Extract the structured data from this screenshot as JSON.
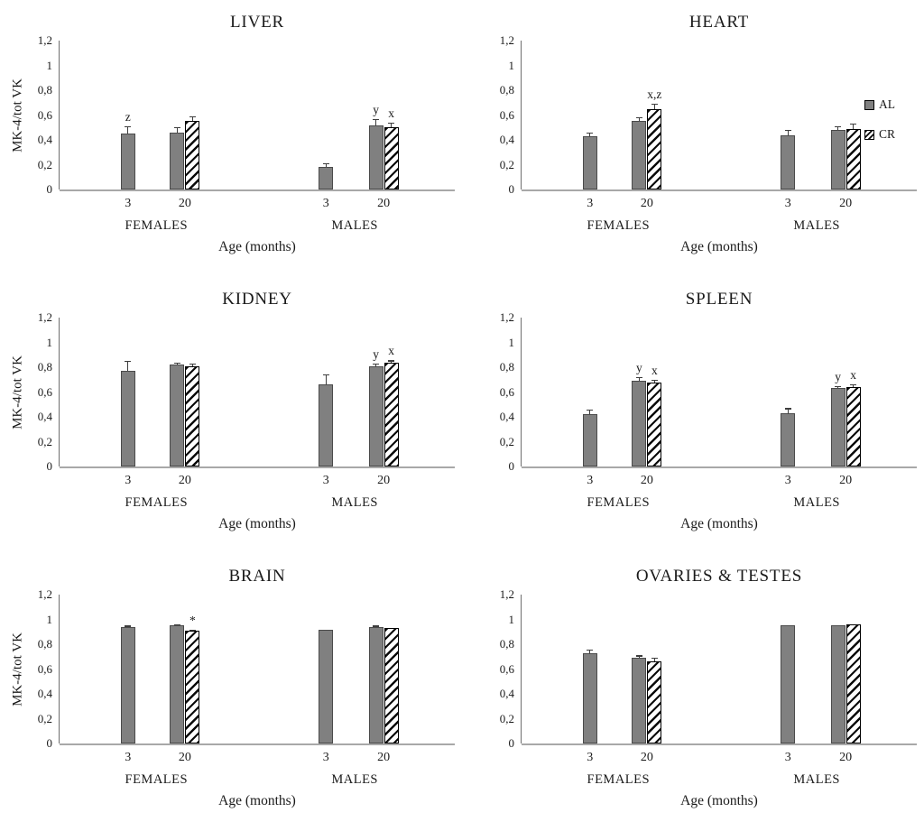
{
  "figure": {
    "background": "#ffffff"
  },
  "colors": {
    "al_fill": "#808080",
    "al_border": "#4a4a4a",
    "cr_fill": "#ffffff",
    "cr_hatch": "#0a0a0a",
    "axis": "#6e6e6e",
    "baseline": "#a8a8a8",
    "text": "#1a1a1a"
  },
  "legend": {
    "items": [
      {
        "label": "AL",
        "swatch": "al"
      },
      {
        "label": "CR",
        "swatch": "cr"
      }
    ]
  },
  "chart_data": [
    {
      "type": "bar",
      "title": "LIVER",
      "ylabel": "MK-4/tot VK",
      "xlabel": "Age (months)",
      "ylim": [
        0,
        1.2
      ],
      "yticks": [
        [
          0,
          "0"
        ],
        [
          0.2,
          "0,2"
        ],
        [
          0.4,
          "0,4"
        ],
        [
          0.6,
          "0,6"
        ],
        [
          0.8,
          "0,8"
        ],
        [
          1,
          "1"
        ],
        [
          1.2,
          "1,2"
        ]
      ],
      "show_legend": false,
      "groups": [
        {
          "label": "FEMALES",
          "categories": [
            {
              "label": "3",
              "bars": [
                {
                  "series": "AL",
                  "value": 0.45,
                  "error": 0.06,
                  "note": "z"
                }
              ]
            },
            {
              "label": "20",
              "bars": [
                {
                  "series": "AL",
                  "value": 0.46,
                  "error": 0.04,
                  "note": ""
                },
                {
                  "series": "CR",
                  "value": 0.55,
                  "error": 0.04,
                  "note": ""
                }
              ]
            }
          ]
        },
        {
          "label": "MALES",
          "categories": [
            {
              "label": "3",
              "bars": [
                {
                  "series": "AL",
                  "value": 0.18,
                  "error": 0.03,
                  "note": ""
                }
              ]
            },
            {
              "label": "20",
              "bars": [
                {
                  "series": "AL",
                  "value": 0.52,
                  "error": 0.05,
                  "note": "y"
                },
                {
                  "series": "CR",
                  "value": 0.5,
                  "error": 0.04,
                  "note": "x"
                }
              ]
            }
          ]
        }
      ]
    },
    {
      "type": "bar",
      "title": "HEART",
      "ylabel": null,
      "xlabel": "Age (months)",
      "ylim": [
        0,
        1.2
      ],
      "yticks": [
        [
          0,
          "0"
        ],
        [
          0.2,
          "0,2"
        ],
        [
          0.4,
          "0,4"
        ],
        [
          0.6,
          "0,6"
        ],
        [
          0.8,
          "0,8"
        ],
        [
          1,
          "1"
        ],
        [
          1.2,
          "1,2"
        ]
      ],
      "show_legend": true,
      "groups": [
        {
          "label": "FEMALES",
          "categories": [
            {
              "label": "3",
              "bars": [
                {
                  "series": "AL",
                  "value": 0.43,
                  "error": 0.03,
                  "note": ""
                }
              ]
            },
            {
              "label": "20",
              "bars": [
                {
                  "series": "AL",
                  "value": 0.55,
                  "error": 0.03,
                  "note": ""
                },
                {
                  "series": "CR",
                  "value": 0.65,
                  "error": 0.04,
                  "note": "x,z"
                }
              ]
            }
          ]
        },
        {
          "label": "MALES",
          "categories": [
            {
              "label": "3",
              "bars": [
                {
                  "series": "AL",
                  "value": 0.44,
                  "error": 0.04,
                  "note": ""
                }
              ]
            },
            {
              "label": "20",
              "bars": [
                {
                  "series": "AL",
                  "value": 0.48,
                  "error": 0.03,
                  "note": ""
                },
                {
                  "series": "CR",
                  "value": 0.49,
                  "error": 0.04,
                  "note": ""
                }
              ]
            }
          ]
        }
      ]
    },
    {
      "type": "bar",
      "title": "KIDNEY",
      "ylabel": "MK-4/tot VK",
      "xlabel": "Age (months)",
      "ylim": [
        0,
        1.2
      ],
      "yticks": [
        [
          0,
          "0"
        ],
        [
          0.2,
          "0,2"
        ],
        [
          0.4,
          "0,4"
        ],
        [
          0.6,
          "0,6"
        ],
        [
          0.8,
          "0,8"
        ],
        [
          1,
          "1"
        ],
        [
          1.2,
          "1,2"
        ]
      ],
      "show_legend": false,
      "groups": [
        {
          "label": "FEMALES",
          "categories": [
            {
              "label": "3",
              "bars": [
                {
                  "series": "AL",
                  "value": 0.77,
                  "error": 0.08,
                  "note": ""
                }
              ]
            },
            {
              "label": "20",
              "bars": [
                {
                  "series": "AL",
                  "value": 0.82,
                  "error": 0.02,
                  "note": ""
                },
                {
                  "series": "CR",
                  "value": 0.81,
                  "error": 0.02,
                  "note": ""
                }
              ]
            }
          ]
        },
        {
          "label": "MALES",
          "categories": [
            {
              "label": "3",
              "bars": [
                {
                  "series": "AL",
                  "value": 0.66,
                  "error": 0.08,
                  "note": ""
                }
              ]
            },
            {
              "label": "20",
              "bars": [
                {
                  "series": "AL",
                  "value": 0.81,
                  "error": 0.02,
                  "note": "y"
                },
                {
                  "series": "CR",
                  "value": 0.84,
                  "error": 0.015,
                  "note": "x"
                }
              ]
            }
          ]
        }
      ]
    },
    {
      "type": "bar",
      "title": "SPLEEN",
      "ylabel": null,
      "xlabel": "Age (months)",
      "ylim": [
        0,
        1.2
      ],
      "yticks": [
        [
          0,
          "0"
        ],
        [
          0.2,
          "0,2"
        ],
        [
          0.4,
          "0,4"
        ],
        [
          0.6,
          "0,6"
        ],
        [
          0.8,
          "0,8"
        ],
        [
          1,
          "1"
        ],
        [
          1.2,
          "1,2"
        ]
      ],
      "show_legend": false,
      "groups": [
        {
          "label": "FEMALES",
          "categories": [
            {
              "label": "3",
              "bars": [
                {
                  "series": "AL",
                  "value": 0.42,
                  "error": 0.04,
                  "note": ""
                }
              ]
            },
            {
              "label": "20",
              "bars": [
                {
                  "series": "AL",
                  "value": 0.69,
                  "error": 0.03,
                  "note": "y"
                },
                {
                  "series": "CR",
                  "value": 0.68,
                  "error": 0.02,
                  "note": "x"
                }
              ]
            }
          ]
        },
        {
          "label": "MALES",
          "categories": [
            {
              "label": "3",
              "bars": [
                {
                  "series": "AL",
                  "value": 0.43,
                  "error": 0.04,
                  "note": ""
                }
              ]
            },
            {
              "label": "20",
              "bars": [
                {
                  "series": "AL",
                  "value": 0.63,
                  "error": 0.02,
                  "note": "y"
                },
                {
                  "series": "CR",
                  "value": 0.64,
                  "error": 0.02,
                  "note": "x"
                }
              ]
            }
          ]
        }
      ]
    },
    {
      "type": "bar",
      "title": "BRAIN",
      "ylabel": "MK-4/tot VK",
      "xlabel": "Age (months)",
      "ylim": [
        0,
        1.2
      ],
      "yticks": [
        [
          0,
          "0"
        ],
        [
          0.2,
          "0,2"
        ],
        [
          0.4,
          "0,4"
        ],
        [
          0.6,
          "0,6"
        ],
        [
          0.8,
          "0,8"
        ],
        [
          1,
          "1"
        ],
        [
          1.2,
          "1,2"
        ]
      ],
      "show_legend": false,
      "groups": [
        {
          "label": "FEMALES",
          "categories": [
            {
              "label": "3",
              "bars": [
                {
                  "series": "AL",
                  "value": 0.94,
                  "error": 0.01,
                  "note": ""
                }
              ]
            },
            {
              "label": "20",
              "bars": [
                {
                  "series": "AL",
                  "value": 0.95,
                  "error": 0.01,
                  "note": ""
                },
                {
                  "series": "CR",
                  "value": 0.91,
                  "error": 0.01,
                  "note": "*"
                }
              ]
            }
          ]
        },
        {
          "label": "MALES",
          "categories": [
            {
              "label": "3",
              "bars": [
                {
                  "series": "AL",
                  "value": 0.92,
                  "error": 0.005,
                  "note": ""
                }
              ]
            },
            {
              "label": "20",
              "bars": [
                {
                  "series": "AL",
                  "value": 0.94,
                  "error": 0.01,
                  "note": ""
                },
                {
                  "series": "CR",
                  "value": 0.93,
                  "error": 0.005,
                  "note": ""
                }
              ]
            }
          ]
        }
      ]
    },
    {
      "type": "bar",
      "title": "OVARIES & TESTES",
      "ylabel": null,
      "xlabel": "Age (months)",
      "ylim": [
        0,
        1.2
      ],
      "yticks": [
        [
          0,
          "0"
        ],
        [
          0.2,
          "0,2"
        ],
        [
          0.4,
          "0,4"
        ],
        [
          0.6,
          "0,6"
        ],
        [
          0.8,
          "0,8"
        ],
        [
          1,
          "1"
        ],
        [
          1.2,
          "1,2"
        ]
      ],
      "show_legend": false,
      "groups": [
        {
          "label": "FEMALES",
          "categories": [
            {
              "label": "3",
              "bars": [
                {
                  "series": "AL",
                  "value": 0.73,
                  "error": 0.03,
                  "note": ""
                }
              ]
            },
            {
              "label": "20",
              "bars": [
                {
                  "series": "AL",
                  "value": 0.69,
                  "error": 0.02,
                  "note": ""
                },
                {
                  "series": "CR",
                  "value": 0.66,
                  "error": 0.03,
                  "note": ""
                }
              ]
            }
          ]
        },
        {
          "label": "MALES",
          "categories": [
            {
              "label": "3",
              "bars": [
                {
                  "series": "AL",
                  "value": 0.95,
                  "error": 0,
                  "note": ""
                }
              ]
            },
            {
              "label": "20",
              "bars": [
                {
                  "series": "AL",
                  "value": 0.95,
                  "error": 0,
                  "note": ""
                },
                {
                  "series": "CR",
                  "value": 0.96,
                  "error": 0,
                  "note": ""
                }
              ]
            }
          ]
        }
      ]
    }
  ]
}
